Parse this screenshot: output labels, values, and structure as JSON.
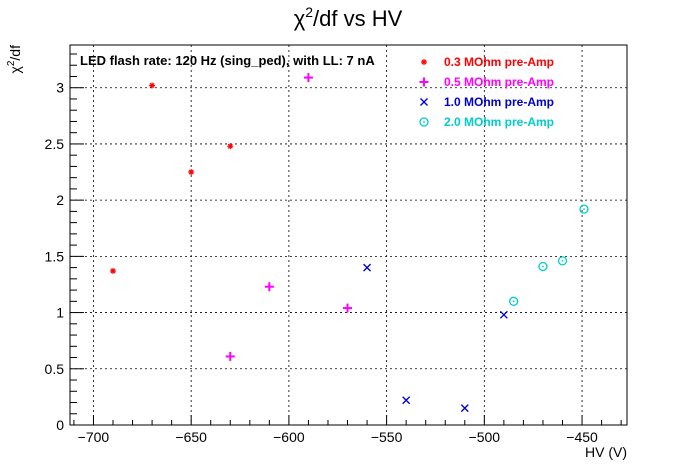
{
  "chart_data": {
    "type": "scatter",
    "title": "χ²/df vs HV",
    "title_main": "χ",
    "title_sup": "2",
    "title_rest": "/df vs HV",
    "xlabel": "HV (V)",
    "ylabel_main": "χ",
    "ylabel_sup": "2",
    "ylabel_rest": "/df",
    "xlim": [
      -712,
      -427
    ],
    "ylim": [
      0,
      3.38
    ],
    "xticks": [
      -700,
      -650,
      -600,
      -550,
      -500,
      -450
    ],
    "xtick_labels": [
      "−700",
      "−650",
      "−600",
      "−550",
      "−500",
      "−450"
    ],
    "yticks": [
      0,
      0.5,
      1,
      1.5,
      2,
      2.5,
      3
    ],
    "ytick_labels": [
      "0",
      "0.5",
      "1",
      "1.5",
      "2",
      "2.5",
      "3"
    ],
    "grid": true,
    "legend_position": "top-right",
    "annotation": "LED flash rate: 120 Hz  (sing_ped), with LL: 7 nA",
    "series": [
      {
        "name": "0.3 MOhm pre-Amp",
        "marker": "*",
        "color": "#ff0000",
        "x": [
          -690,
          -670,
          -650,
          -630
        ],
        "y": [
          1.37,
          3.02,
          2.25,
          2.48
        ]
      },
      {
        "name": "0.5 MOhm pre-Amp",
        "marker": "+",
        "color": "#ff00ff",
        "x": [
          -630,
          -610,
          -590,
          -570
        ],
        "y": [
          0.61,
          1.23,
          3.09,
          1.04
        ]
      },
      {
        "name": "1.0 MOhm pre-Amp",
        "marker": "x",
        "color": "#0000cc",
        "x": [
          -560,
          -540,
          -510,
          -490
        ],
        "y": [
          1.4,
          0.22,
          0.15,
          0.98
        ]
      },
      {
        "name": "2.0 MOhm pre-Amp",
        "marker": "o",
        "color": "#00cccc",
        "x": [
          -485,
          -470,
          -460,
          -449
        ],
        "y": [
          1.1,
          1.41,
          1.46,
          1.92
        ]
      }
    ]
  }
}
